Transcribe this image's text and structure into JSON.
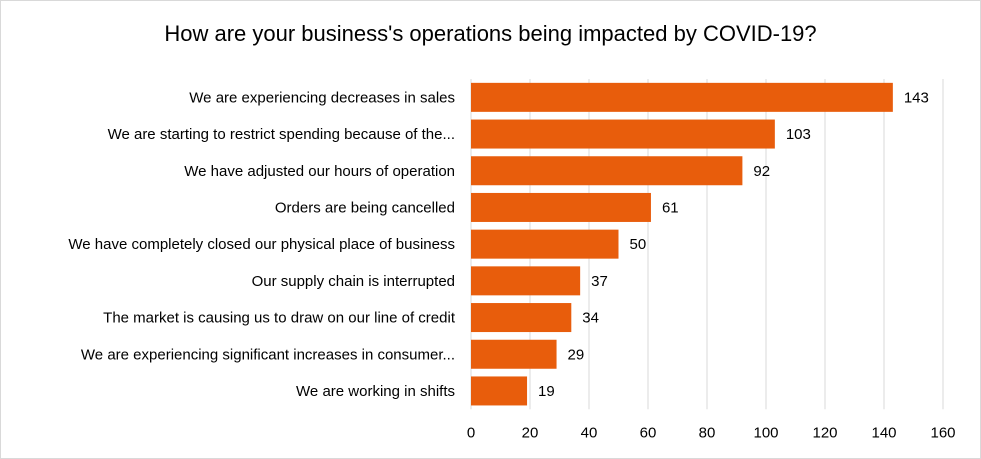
{
  "chart_data": {
    "type": "bar",
    "orientation": "horizontal",
    "title": "How are your business's operations being impacted by COVID-19?",
    "categories": [
      "We are experiencing decreases in sales",
      "We are starting to restrict spending because of the...",
      "We have adjusted our hours of operation",
      "Orders are being cancelled",
      "We have completely closed our physical place of business",
      "Our supply chain is interrupted",
      "The market is causing us to draw on our line of credit",
      "We are experiencing significant increases in consumer...",
      "We are working in shifts"
    ],
    "values": [
      143,
      103,
      92,
      61,
      50,
      37,
      34,
      29,
      19
    ],
    "xlim": [
      0,
      160
    ],
    "x_ticks": [
      0,
      20,
      40,
      60,
      80,
      100,
      120,
      140,
      160
    ],
    "grid": true,
    "data_labels": true,
    "bar_color": "#e85d0c",
    "grid_color": "#d9d9d9"
  }
}
